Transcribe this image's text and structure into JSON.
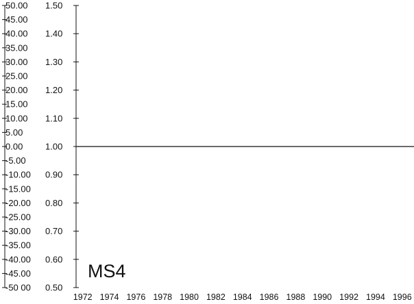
{
  "chart_data": {
    "type": "line",
    "panel_label": "MS4",
    "x": [
      1972,
      1973,
      1974,
      1975,
      1976,
      1977,
      1978,
      1979,
      1980,
      1981,
      1982,
      1983,
      1984,
      1985,
      1986,
      1987,
      1988,
      1989,
      1990,
      1991,
      1992,
      1993,
      1994,
      1995,
      1996,
      1997
    ],
    "series": [
      {
        "values": [
          1.0,
          1.0,
          1.0,
          1.0,
          1.0,
          1.0,
          1.0,
          1.0,
          1.0,
          1.0,
          1.0,
          1.0,
          1.0,
          1.0,
          1.0,
          1.0,
          1.0,
          1.0,
          1.0,
          1.0,
          1.0,
          1.0,
          1.0,
          1.0,
          1.0,
          1.0
        ]
      }
    ],
    "x_ticks": [
      "1972",
      "1974",
      "1976",
      "1978",
      "1980",
      "1982",
      "1984",
      "1986",
      "1988",
      "1990",
      "1992",
      "1994",
      "1996"
    ],
    "xlim": [
      1971.5,
      1997.3
    ],
    "y_left_ticks": [
      "50.00",
      "45.00",
      "40.00",
      "35.00",
      "30.00",
      "25.00",
      "20.00",
      "15.00",
      "10.00",
      "5.00",
      "0.00",
      "-5.00",
      "-10.00",
      "-15.00",
      "-20.00",
      "-25.00",
      "-30.00",
      "-35.00",
      "-40.00",
      "-45.00",
      "-50 00"
    ],
    "y_left_lim": [
      -50,
      50
    ],
    "y_right_ticks": [
      "1.50",
      "1.40",
      "1.30",
      "1.20",
      "1.10",
      "1.00",
      "0.90",
      "0.80",
      "0.70",
      "0.60",
      "0.50"
    ],
    "y_right_lim": [
      0.5,
      1.5
    ],
    "grid": false,
    "colors": {
      "line": "#111111",
      "axis": "#111111",
      "background": "#ffffff"
    }
  }
}
